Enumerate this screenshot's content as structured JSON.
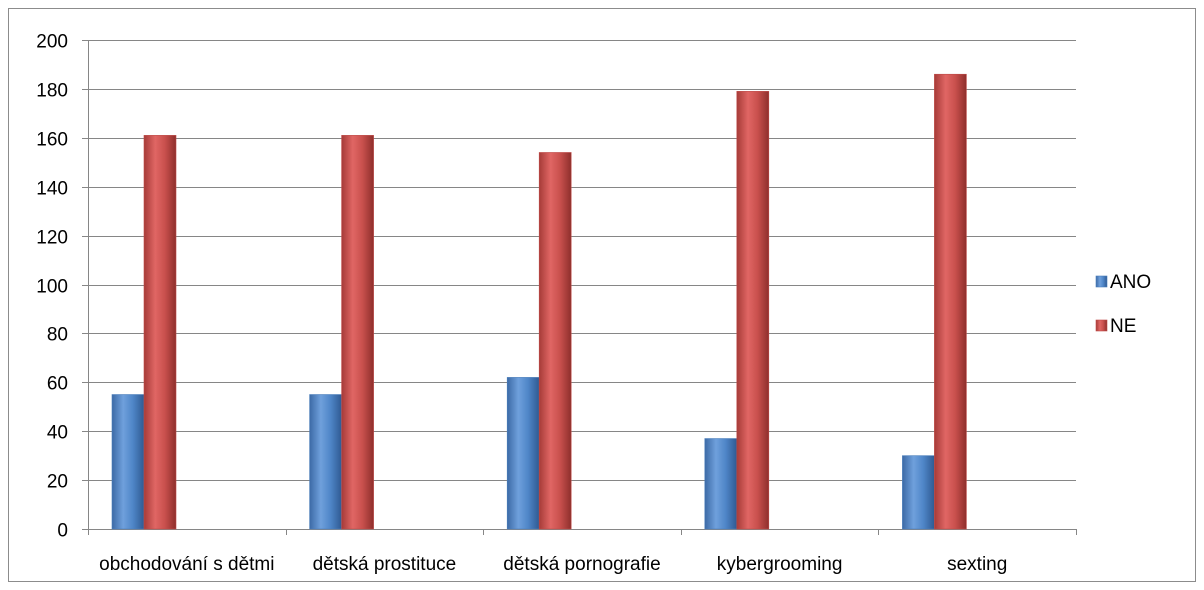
{
  "chart_data": {
    "type": "bar",
    "categories": [
      "obchodování s dětmi",
      "dětská prostituce",
      "dětská pornografie",
      "kybergrooming",
      "sexting"
    ],
    "series": [
      {
        "name": "ANO",
        "values": [
          55,
          55,
          62,
          37,
          30
        ],
        "color": "#4a7ebb"
      },
      {
        "name": "NE",
        "values": [
          161,
          161,
          154,
          179,
          186
        ],
        "color": "#be4b48"
      }
    ],
    "ylim": [
      0,
      200
    ],
    "yticks": [
      0,
      20,
      40,
      60,
      80,
      100,
      120,
      140,
      160,
      180,
      200
    ],
    "grid": true,
    "legend_position": "right"
  }
}
